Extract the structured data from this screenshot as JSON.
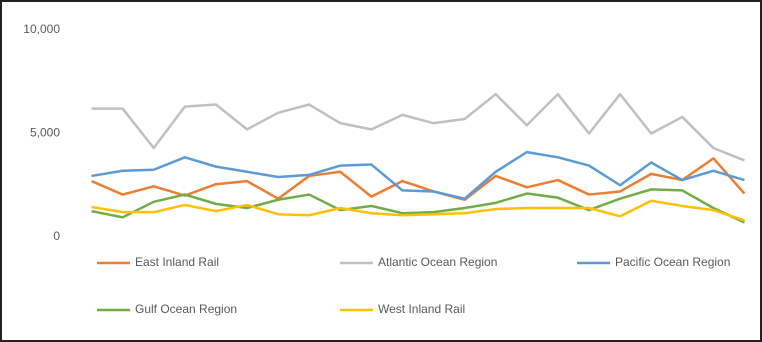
{
  "chart_data": {
    "type": "line",
    "categories": [
      null,
      null,
      null,
      null,
      null,
      null,
      null,
      null,
      null,
      null,
      null,
      null,
      null,
      null,
      null,
      null,
      null,
      null,
      null,
      null,
      null,
      null
    ],
    "series": [
      {
        "name": "East Inland Rail",
        "color": "#ed7d31",
        "values": [
          2700,
          2050,
          2450,
          2000,
          2550,
          2700,
          1850,
          2950,
          3150,
          1950,
          2700,
          2200,
          1800,
          2950,
          2400,
          2750,
          2050,
          2200,
          3050,
          2750,
          3800,
          2100
        ]
      },
      {
        "name": "Atlantic Ocean Region",
        "color": "#c0c0c0",
        "values": [
          6200,
          6200,
          4300,
          6300,
          6400,
          5200,
          6000,
          6400,
          5500,
          5200,
          5900,
          5500,
          5700,
          6900,
          5400,
          6900,
          5000,
          6900,
          5000,
          5800,
          4300,
          3700
        ]
      },
      {
        "name": "Pacific Ocean Region",
        "color": "#5b9bd5",
        "values": [
          2950,
          3200,
          3250,
          3850,
          3400,
          3150,
          2900,
          3000,
          3450,
          3500,
          2250,
          2200,
          1850,
          3150,
          4100,
          3850,
          3450,
          2500,
          3600,
          2750,
          3200,
          2750
        ]
      },
      {
        "name": "Gulf Ocean Region",
        "color": "#70ad47",
        "values": [
          1250,
          950,
          1700,
          2050,
          1600,
          1400,
          1800,
          2050,
          1300,
          1500,
          1150,
          1200,
          1400,
          1650,
          2100,
          1900,
          1300,
          1850,
          2300,
          2250,
          1400,
          700
        ]
      },
      {
        "name": "West Inland Rail",
        "color": "#ffc000",
        "values": [
          1450,
          1200,
          1200,
          1550,
          1250,
          1550,
          1100,
          1050,
          1400,
          1150,
          1050,
          1100,
          1150,
          1350,
          1400,
          1400,
          1400,
          1000,
          1750,
          1500,
          1300,
          800
        ]
      }
    ],
    "ylim": [
      0,
      10000
    ],
    "yticks": [
      0,
      {
        "value": 5000,
        "label": "5,000"
      },
      {
        "value": 10000,
        "label": "10,000"
      }
    ],
    "grid": false
  }
}
